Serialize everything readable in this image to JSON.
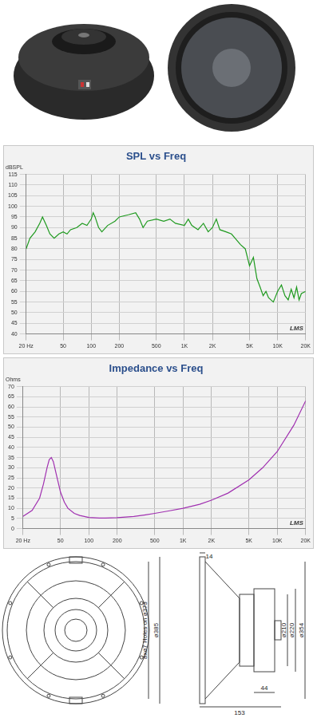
{
  "chart_data": [
    {
      "type": "line",
      "title": "SPL vs Freq",
      "y_label": "dBSPL",
      "annotation": "LMS",
      "log": "x",
      "grid": true,
      "xlim": [
        20,
        20000
      ],
      "xticks": [
        {
          "value": 20,
          "label": "20 Hz"
        },
        50,
        100,
        200,
        500,
        {
          "value": 1000,
          "label": "1K"
        },
        {
          "value": 2000,
          "label": "2K"
        },
        {
          "value": 5000,
          "label": "5K"
        },
        {
          "value": 10000,
          "label": "10K"
        },
        {
          "value": 20000,
          "label": "20K"
        }
      ],
      "ylim": [
        40,
        115
      ],
      "yticks": [
        40,
        45,
        50,
        55,
        60,
        65,
        70,
        75,
        80,
        85,
        90,
        95,
        100,
        105,
        110,
        115
      ],
      "series": [
        {
          "name": "SPL",
          "color": "#1f9a1f",
          "x": [
            20,
            22,
            25,
            28,
            30,
            33,
            36,
            40,
            45,
            50,
            55,
            60,
            70,
            80,
            90,
            100,
            105,
            110,
            120,
            130,
            150,
            180,
            200,
            250,
            300,
            330,
            360,
            400,
            500,
            600,
            700,
            800,
            1000,
            1100,
            1200,
            1400,
            1600,
            1800,
            2000,
            2200,
            2400,
            2800,
            3200,
            3500,
            4000,
            4500,
            5000,
            5500,
            6000,
            6500,
            7000,
            7500,
            8000,
            9000,
            10000,
            11000,
            12000,
            13000,
            14000,
            15000,
            16000,
            17000,
            18000,
            20000
          ],
          "values": [
            80,
            85,
            88,
            92,
            95,
            91,
            87,
            85,
            87,
            88,
            87,
            89,
            90,
            92,
            91,
            94,
            97,
            95,
            90,
            88,
            91,
            93,
            95,
            96,
            97,
            94,
            90,
            93,
            94,
            93,
            94,
            92,
            91,
            94,
            91,
            89,
            92,
            88,
            90,
            94,
            89,
            88,
            87,
            85,
            82,
            80,
            72,
            76,
            66,
            62,
            58,
            60,
            57,
            55,
            60,
            63,
            58,
            56,
            61,
            57,
            62,
            56,
            59,
            60
          ]
        }
      ]
    },
    {
      "type": "line",
      "title": "Impedance vs Freq",
      "y_label": "Ohms",
      "annotation": "LMS",
      "log": "x",
      "grid": true,
      "xlim": [
        20,
        20000
      ],
      "xticks": [
        {
          "value": 20,
          "label": "20 Hz"
        },
        50,
        100,
        200,
        500,
        {
          "value": 1000,
          "label": "1K"
        },
        {
          "value": 2000,
          "label": "2K"
        },
        {
          "value": 5000,
          "label": "5K"
        },
        {
          "value": 10000,
          "label": "10K"
        },
        {
          "value": 20000,
          "label": "20K"
        }
      ],
      "ylim": [
        0,
        70
      ],
      "yticks": [
        0,
        5,
        10,
        15,
        20,
        25,
        30,
        35,
        40,
        45,
        50,
        55,
        60,
        65,
        70
      ],
      "series": [
        {
          "name": "Impedance",
          "color": "#a030b0",
          "x": [
            20,
            25,
            30,
            33,
            36,
            38,
            40,
            42,
            45,
            50,
            55,
            60,
            70,
            80,
            100,
            130,
            150,
            200,
            300,
            400,
            500,
            700,
            1000,
            1500,
            2000,
            3000,
            5000,
            7000,
            10000,
            15000,
            20000
          ],
          "values": [
            6,
            9,
            15,
            22,
            30,
            34,
            35,
            33,
            27,
            18,
            13,
            10,
            7.5,
            6.5,
            5.5,
            5.2,
            5.2,
            5.4,
            6,
            6.8,
            7.5,
            8.7,
            10,
            12,
            14,
            17.5,
            24,
            30,
            38,
            51,
            63
          ]
        }
      ]
    }
  ],
  "drawing": {
    "labels": [
      "14",
      "ø210",
      "ø220",
      "ø354",
      "44",
      "153",
      "ø385",
      "8xø7 Holes on ø373"
    ]
  }
}
